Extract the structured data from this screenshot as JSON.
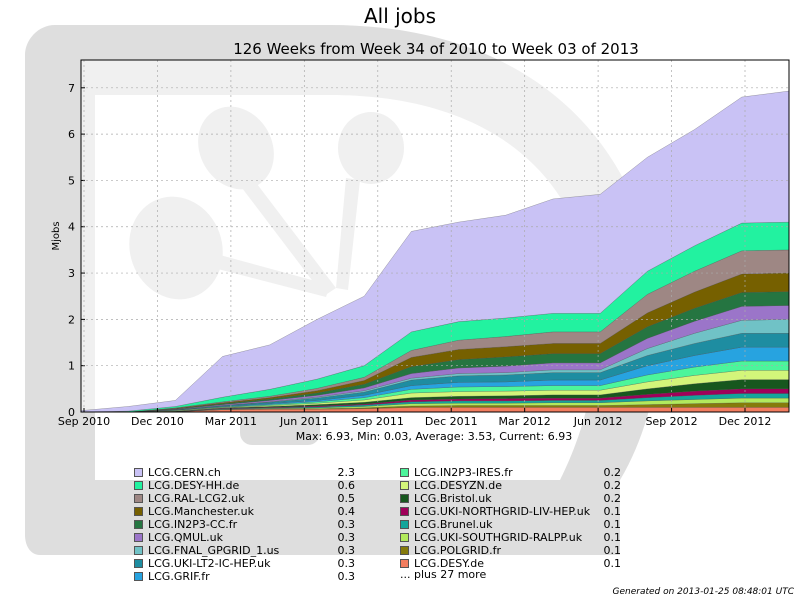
{
  "chart_data": {
    "type": "area",
    "title": "All jobs",
    "subtitle": "126 Weeks from Week 34 of 2010 to Week 03 of 2013",
    "ylabel": "Mjobs",
    "xlabel": "",
    "ylim": [
      0,
      7.6
    ],
    "yticks": [
      "0",
      "1",
      "2",
      "3",
      "4",
      "5",
      "6",
      "7"
    ],
    "xticks": [
      "Sep 2010",
      "Dec 2010",
      "Mar 2011",
      "Jun 2011",
      "Sep 2011",
      "Dec 2011",
      "Mar 2012",
      "Jun 2012",
      "Sep 2012",
      "Dec 2012"
    ],
    "grid": true,
    "stats": "Max: 6.93, Min: 0.03, Average: 3.53, Current: 6.93",
    "totals": [
      0.03,
      0.12,
      0.25,
      1.2,
      1.45,
      2.0,
      2.5,
      3.9,
      4.1,
      4.25,
      4.6,
      4.7,
      5.5,
      6.1,
      6.8,
      6.93
    ],
    "series": [
      {
        "name": "LCG.CERN.ch",
        "value": "2.3",
        "color": "#c9c2f5",
        "curve": [
          0.0,
          0.05,
          0.1,
          0.8,
          0.9,
          0.6,
          0.8,
          1.6,
          1.5,
          1.5,
          1.8,
          1.8,
          1.9,
          2.0,
          2.2,
          2.3
        ]
      },
      {
        "name": "LCG.DESY-HH.de",
        "value": "0.6",
        "color": "#22f2a0",
        "curve": [
          0.0,
          0.02,
          0.03,
          0.1,
          0.15,
          0.2,
          0.25,
          0.4,
          0.4,
          0.4,
          0.4,
          0.4,
          0.5,
          0.55,
          0.6,
          0.6
        ]
      },
      {
        "name": "LCG.RAL-LCG2.uk",
        "value": "0.5",
        "color": "#9e8784",
        "curve": [
          0.0,
          0.0,
          0.01,
          0.02,
          0.03,
          0.05,
          0.07,
          0.15,
          0.2,
          0.22,
          0.25,
          0.25,
          0.4,
          0.45,
          0.5,
          0.5
        ]
      },
      {
        "name": "LCG.Manchester.uk",
        "value": "0.4",
        "color": "#766000",
        "curve": [
          0.0,
          0.0,
          0.01,
          0.02,
          0.03,
          0.05,
          0.08,
          0.2,
          0.22,
          0.22,
          0.22,
          0.22,
          0.3,
          0.35,
          0.4,
          0.4
        ]
      },
      {
        "name": "LCG.IN2P3-CC.fr",
        "value": "0.3",
        "color": "#257541",
        "curve": [
          0.0,
          0.0,
          0.01,
          0.02,
          0.03,
          0.05,
          0.08,
          0.15,
          0.18,
          0.2,
          0.2,
          0.2,
          0.25,
          0.28,
          0.3,
          0.3
        ]
      },
      {
        "name": "LCG.QMUL.uk",
        "value": "0.3",
        "color": "#9b75c9",
        "curve": [
          0.0,
          0.0,
          0.01,
          0.02,
          0.03,
          0.04,
          0.06,
          0.1,
          0.12,
          0.14,
          0.15,
          0.15,
          0.22,
          0.26,
          0.3,
          0.3
        ]
      },
      {
        "name": "LCG.FNAL_GPGRID_1.us",
        "value": "0.3",
        "color": "#70c2c6",
        "curve": [
          0.0,
          0.0,
          0.0,
          0.0,
          0.01,
          0.02,
          0.03,
          0.04,
          0.05,
          0.05,
          0.06,
          0.06,
          0.15,
          0.22,
          0.28,
          0.3
        ]
      },
      {
        "name": "LCG.UKI-LT2-IC-HEP.uk",
        "value": "0.3",
        "color": "#1e8da1",
        "curve": [
          0.0,
          0.0,
          0.01,
          0.02,
          0.03,
          0.05,
          0.07,
          0.12,
          0.14,
          0.15,
          0.16,
          0.16,
          0.22,
          0.26,
          0.3,
          0.3
        ]
      },
      {
        "name": "LCG.GRIF.fr",
        "value": "0.3",
        "color": "#27a3e0",
        "curve": [
          0.0,
          0.0,
          0.0,
          0.01,
          0.02,
          0.03,
          0.05,
          0.08,
          0.1,
          0.1,
          0.12,
          0.12,
          0.2,
          0.25,
          0.3,
          0.3
        ]
      },
      {
        "name": "LCG.IN2P3-IRES.fr",
        "value": "0.2",
        "color": "#4cf59b",
        "curve": [
          0.0,
          0.0,
          0.01,
          0.01,
          0.02,
          0.03,
          0.05,
          0.08,
          0.1,
          0.1,
          0.1,
          0.1,
          0.15,
          0.18,
          0.2,
          0.2
        ]
      },
      {
        "name": "LCG.DESYZN.de",
        "value": "0.2",
        "color": "#d3f57a",
        "curve": [
          0.0,
          0.0,
          0.01,
          0.01,
          0.02,
          0.03,
          0.05,
          0.1,
          0.1,
          0.1,
          0.1,
          0.1,
          0.15,
          0.18,
          0.2,
          0.2
        ]
      },
      {
        "name": "LCG.Bristol.uk",
        "value": "0.2",
        "color": "#17571e",
        "curve": [
          0.0,
          0.0,
          0.01,
          0.01,
          0.02,
          0.03,
          0.04,
          0.05,
          0.06,
          0.06,
          0.07,
          0.07,
          0.12,
          0.16,
          0.2,
          0.2
        ]
      },
      {
        "name": "LCG.UKI-NORTHGRID-LIV-HEP.uk",
        "value": "0.1",
        "color": "#a0005a",
        "curve": [
          0.0,
          0.0,
          0.0,
          0.01,
          0.01,
          0.02,
          0.02,
          0.04,
          0.04,
          0.05,
          0.05,
          0.05,
          0.07,
          0.09,
          0.1,
          0.1
        ]
      },
      {
        "name": "LCG.Brunel.uk",
        "value": "0.1",
        "color": "#14a59b",
        "curve": [
          0.0,
          0.0,
          0.0,
          0.01,
          0.01,
          0.02,
          0.03,
          0.04,
          0.05,
          0.05,
          0.05,
          0.05,
          0.07,
          0.09,
          0.1,
          0.1
        ]
      },
      {
        "name": "LCG.UKI-SOUTHGRID-RALPP.uk",
        "value": "0.1",
        "color": "#b2ea5d",
        "curve": [
          0.0,
          0.0,
          0.0,
          0.01,
          0.01,
          0.02,
          0.03,
          0.05,
          0.05,
          0.05,
          0.06,
          0.06,
          0.08,
          0.09,
          0.1,
          0.1
        ]
      },
      {
        "name": "LCG.POLGRID.fr",
        "value": "0.1",
        "color": "#857b0b",
        "curve": [
          0.0,
          0.0,
          0.0,
          0.0,
          0.01,
          0.01,
          0.02,
          0.03,
          0.04,
          0.04,
          0.04,
          0.04,
          0.06,
          0.08,
          0.1,
          0.1
        ]
      },
      {
        "name": "LCG.DESY.de",
        "value": "0.1",
        "color": "#f27d5f",
        "curve": [
          0.0,
          0.0,
          0.01,
          0.05,
          0.06,
          0.06,
          0.07,
          0.1,
          0.1,
          0.1,
          0.1,
          0.1,
          0.1,
          0.1,
          0.1,
          0.1
        ]
      }
    ]
  },
  "legend_more": "... plus 27 more",
  "footer": "Generated on 2013-01-25 08:48:01 UTC"
}
